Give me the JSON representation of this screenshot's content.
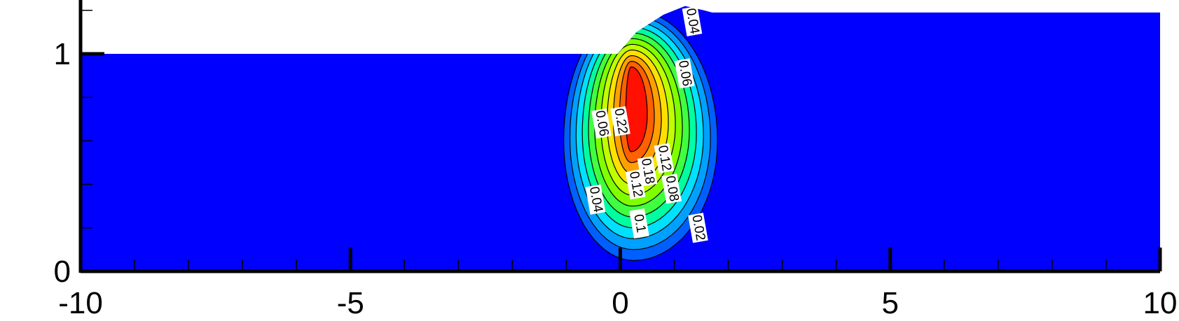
{
  "chart_data": {
    "type": "contour",
    "xlim": [
      -10,
      10
    ],
    "xticks": [
      -10,
      -5,
      0,
      5,
      10
    ],
    "xminorticks": [
      -9,
      -8,
      -7,
      -6,
      -4,
      -3,
      -2,
      -1,
      1,
      2,
      3,
      4,
      6,
      7,
      8,
      9
    ],
    "ylim": [
      0,
      1.25
    ],
    "yticks": [
      0,
      1
    ],
    "yminorticks": [
      0.2,
      0.4,
      0.6,
      0.8,
      1.2
    ],
    "background_color": "#0000ff",
    "free_surface": {
      "x": [
        -10,
        -0.05,
        0.3,
        0.8,
        1.2,
        1.55,
        1.7,
        2.3,
        10
      ],
      "y": [
        1,
        1,
        1.1,
        1.18,
        1.22,
        1.2,
        1.19,
        1.19,
        1.19
      ]
    },
    "levels": [
      0.02,
      0.04,
      0.06,
      0.08,
      0.1,
      0.12,
      0.14,
      0.16,
      0.18,
      0.2,
      0.22
    ],
    "colors": [
      "#0060ff",
      "#00a0ff",
      "#00e0ff",
      "#00ffa0",
      "#40ff40",
      "#80ff00",
      "#c0ff00",
      "#ffe000",
      "#ffa000",
      "#ff6000",
      "#ff1000"
    ],
    "contour_labels": [
      {
        "level": 0.04,
        "x": 1.33,
        "y": 1.15
      },
      {
        "level": 0.06,
        "x": 1.19,
        "y": 0.91
      },
      {
        "level": 0.22,
        "x": 0.0,
        "y": 0.69
      },
      {
        "level": 0.06,
        "x": -0.35,
        "y": 0.68
      },
      {
        "level": 0.04,
        "x": -0.46,
        "y": 0.33
      },
      {
        "level": 0.12,
        "x": 0.28,
        "y": 0.4
      },
      {
        "level": 0.18,
        "x": 0.5,
        "y": 0.46
      },
      {
        "level": 0.12,
        "x": 0.81,
        "y": 0.52
      },
      {
        "level": 0.08,
        "x": 0.95,
        "y": 0.38
      },
      {
        "level": 0.1,
        "x": 0.35,
        "y": 0.22
      },
      {
        "level": 0.02,
        "x": 1.44,
        "y": 0.2
      }
    ]
  }
}
